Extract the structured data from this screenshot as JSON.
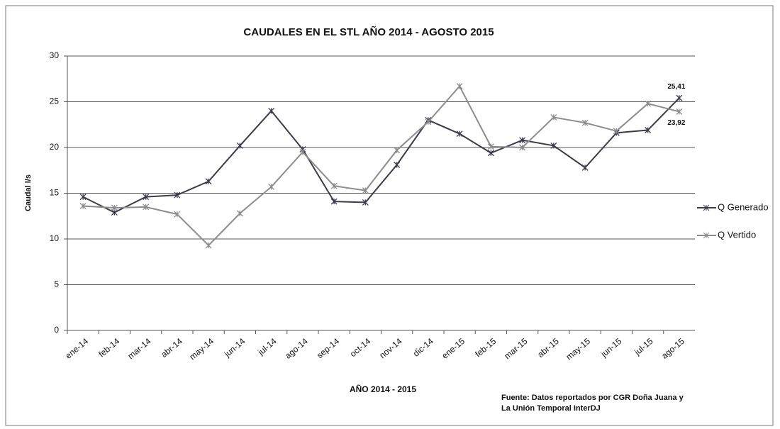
{
  "chart_data": {
    "type": "line",
    "title": "CAUDALES EN EL STL AÑO  2014 - AGOSTO 2015",
    "y_label": "Caudal l/s",
    "x_label": "AÑO 2014 - 2015",
    "source": [
      "Fuente: Datos reportados por CGR Doña Juana y",
      "La Unión Temporal InterDJ"
    ],
    "categories": [
      "ene-14",
      "feb-14",
      "mar-14",
      "abr-14",
      "may-14",
      "jun-14",
      "jul-14",
      "ago-14",
      "sep-14",
      "oct-14",
      "nov-14",
      "dic-14",
      "ene-15",
      "feb-15",
      "mar-15",
      "abr-15",
      "may-15",
      "jun-15",
      "jul-15",
      "ago-15"
    ],
    "series": [
      {
        "name": "Q Generado",
        "color": "#3b3b4d",
        "values": [
          14.6,
          12.9,
          14.6,
          14.8,
          16.3,
          20.2,
          24.0,
          19.8,
          14.1,
          14.0,
          18.1,
          23.0,
          21.5,
          19.4,
          20.8,
          20.2,
          17.8,
          21.6,
          21.9,
          25.41
        ],
        "value_labels": [
          null,
          null,
          null,
          null,
          null,
          null,
          null,
          null,
          null,
          null,
          null,
          null,
          null,
          null,
          null,
          null,
          null,
          null,
          null,
          "25,41"
        ]
      },
      {
        "name": "Q Vertido",
        "color": "#8c8c8c",
        "values": [
          13.6,
          13.4,
          13.5,
          12.7,
          9.3,
          12.8,
          15.7,
          19.5,
          15.8,
          15.3,
          19.7,
          22.8,
          26.7,
          20.1,
          20.0,
          23.3,
          22.7,
          21.8,
          24.8,
          23.92
        ],
        "value_labels": [
          null,
          null,
          null,
          null,
          null,
          null,
          null,
          null,
          null,
          null,
          null,
          null,
          null,
          null,
          null,
          null,
          null,
          null,
          null,
          "23,92"
        ]
      }
    ],
    "ylim": [
      0,
      30
    ],
    "yticks": [
      0,
      5,
      10,
      15,
      20,
      25,
      30
    ],
    "grid": true,
    "legend": "right"
  }
}
